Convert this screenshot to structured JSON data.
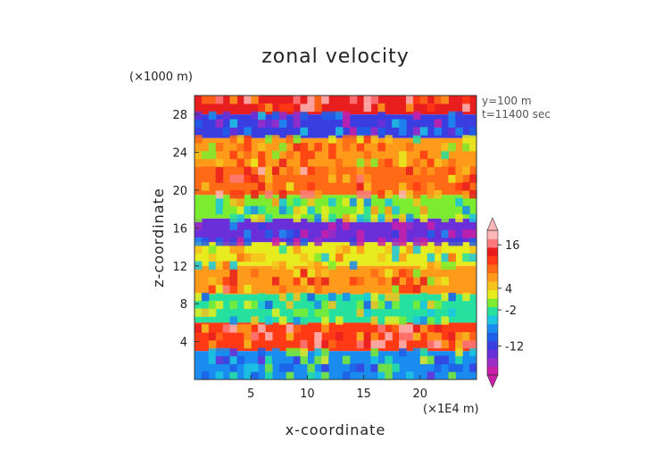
{
  "chart_data": {
    "type": "heatmap",
    "title": "zonal velocity",
    "xlabel": "x-coordinate",
    "ylabel": "z-coordinate",
    "x_unit": "(×1E4 m)",
    "y_unit": "(×1000 m)",
    "annotations": [
      "y=100 m",
      "t=11400 sec"
    ],
    "xlim": [
      0,
      25
    ],
    "ylim": [
      0,
      30
    ],
    "x_ticks": [
      5,
      10,
      15,
      20
    ],
    "y_ticks": [
      4,
      8,
      12,
      16,
      20,
      24,
      28
    ],
    "colorbar": {
      "tick_labels": [
        "16",
        "4",
        "-2",
        "-12"
      ],
      "tick_values": [
        16,
        4,
        -2,
        -12
      ],
      "colors": [
        "#c81ea8",
        "#9b2cc6",
        "#6a2fd8",
        "#3a3ee0",
        "#1e5ee8",
        "#1a8cf0",
        "#1cc6e0",
        "#26e0a0",
        "#7cec30",
        "#e6ec1e",
        "#f6c21c",
        "#ff9a1a",
        "#ff6a16",
        "#ff3a14",
        "#e81e1e",
        "#ff7a7a",
        "#ffb6b6"
      ]
    },
    "bands": [
      {
        "z": [
          28,
          30
        ],
        "value": 14
      },
      {
        "z": [
          25.5,
          28
        ],
        "value": -12
      },
      {
        "z": [
          22.5,
          25.5
        ],
        "value": 6
      },
      {
        "z": [
          19.5,
          22.5
        ],
        "value": 10
      },
      {
        "z": [
          17,
          19.5
        ],
        "value": 0
      },
      {
        "z": [
          14.5,
          17
        ],
        "value": -14
      },
      {
        "z": [
          12,
          14.5
        ],
        "value": 2
      },
      {
        "z": [
          9,
          12
        ],
        "value": 8
      },
      {
        "z": [
          6,
          9
        ],
        "value": -2
      },
      {
        "z": [
          3,
          6
        ],
        "value": 12
      },
      {
        "z": [
          0,
          3
        ],
        "value": -6
      }
    ]
  }
}
